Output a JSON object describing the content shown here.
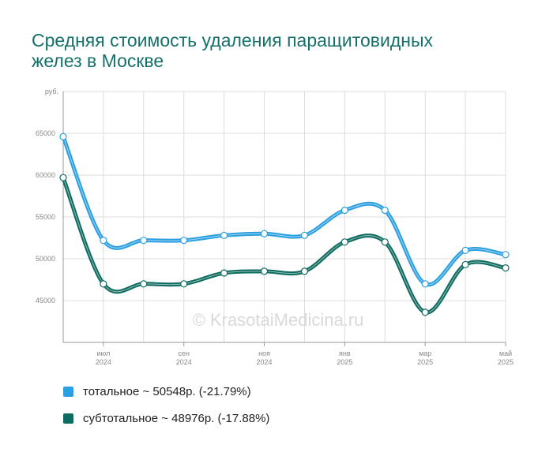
{
  "title_lines": [
    "Средняя стоимость удаления паращитовидных",
    "желез в Москве"
  ],
  "watermark": "© KrasotaiMedicina.ru",
  "chart_data": {
    "type": "line",
    "title": "Средняя стоимость удаления паращитовидных желез в Москве",
    "ylabel": "руб.",
    "ylim": [
      40000,
      70000
    ],
    "yticks": [
      45000,
      50000,
      55000,
      60000,
      65000
    ],
    "x": [
      "2024-06",
      "2024-07",
      "2024-08",
      "2024-09",
      "2024-10",
      "2024-11",
      "2024-12",
      "2025-01",
      "2025-02",
      "2025-03",
      "2025-04",
      "2025-05"
    ],
    "xtick_labels": [
      {
        "x": "2024-07",
        "month": "июл",
        "year": "2024"
      },
      {
        "x": "2024-09",
        "month": "сен",
        "year": "2024"
      },
      {
        "x": "2024-11",
        "month": "ноя",
        "year": "2024"
      },
      {
        "x": "2025-01",
        "month": "янв",
        "year": "2025"
      },
      {
        "x": "2025-03",
        "month": "мар",
        "year": "2025"
      },
      {
        "x": "2025-05",
        "month": "май",
        "year": "2025"
      }
    ],
    "series": [
      {
        "name": "тотальное ~ 50548р. (-21.79%)",
        "color": "#2b9fe0",
        "values": [
          64600,
          52200,
          52200,
          52200,
          52800,
          53000,
          52800,
          55800,
          55800,
          47000,
          51000,
          50500
        ]
      },
      {
        "name": "субтотальное ~ 48976р. (-17.88%)",
        "color": "#0e6b60",
        "values": [
          59700,
          47000,
          47000,
          47000,
          48300,
          48500,
          48500,
          52000,
          52000,
          43600,
          49300,
          48900
        ]
      }
    ],
    "grid": true,
    "legend": "bottom"
  }
}
